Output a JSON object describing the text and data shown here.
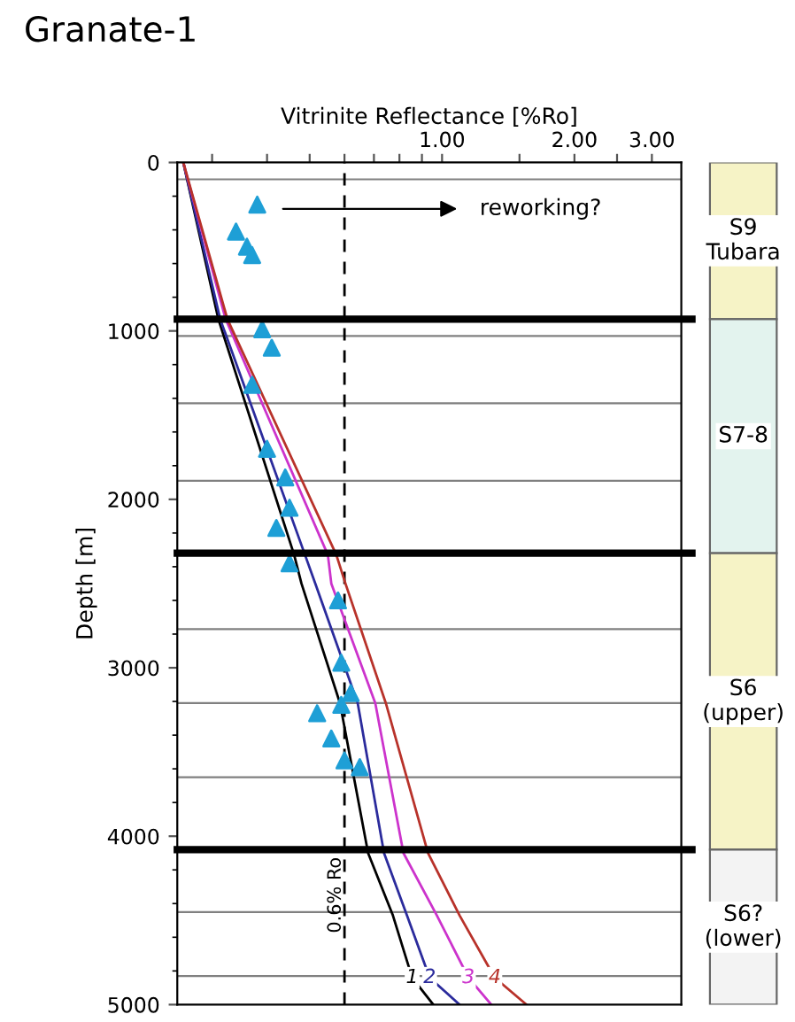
{
  "chart_data": [
    {
      "type": "line",
      "title": "Granate-1",
      "xlabel": "Vitrinite Reflectance [%Ro]",
      "ylabel": "Depth [m]",
      "log": "x",
      "xlim": [
        0.25,
        3.5
      ],
      "xticks": [
        {
          "value": 0.3,
          "label": null
        },
        {
          "value": 0.4,
          "label": null
        },
        {
          "value": 0.5,
          "label": null
        },
        {
          "value": 0.6,
          "label": null
        },
        {
          "value": 0.7,
          "label": null
        },
        {
          "value": 0.8,
          "label": null
        },
        {
          "value": 0.9,
          "label": null
        },
        {
          "value": 1,
          "label": "1.00"
        },
        {
          "value": 1.5,
          "label": null
        },
        {
          "value": 2,
          "label": "2.00"
        },
        {
          "value": 2.5,
          "label": null
        },
        {
          "value": 3,
          "label": "3.00"
        }
      ],
      "ylim": [
        5000,
        0
      ],
      "yticks": [
        0,
        1000,
        2000,
        3000,
        4000,
        5000
      ],
      "grid": false,
      "legend": false,
      "series": [
        {
          "name": "1",
          "color": "#000000",
          "x": [
            0.258,
            0.31,
            0.461,
            0.479,
            0.586,
            0.679,
            0.773,
            0.855,
            0.955
          ],
          "values": [
            0,
            930,
            2330,
            2500,
            3210,
            4100,
            4470,
            4840,
            5000
          ]
        },
        {
          "name": "2",
          "color": "#2b2b9c",
          "x": [
            0.258,
            0.313,
            0.488,
            0.515,
            0.643,
            0.738,
            0.832,
            0.937,
            1.096
          ],
          "values": [
            0,
            930,
            2330,
            2500,
            3210,
            4100,
            4470,
            4840,
            5000
          ]
        },
        {
          "name": "3",
          "color": "#cc33cc",
          "x": [
            0.258,
            0.322,
            0.55,
            0.56,
            0.705,
            0.817,
            0.973,
            1.148,
            1.294
          ],
          "values": [
            0,
            930,
            2330,
            2500,
            3210,
            4100,
            4470,
            4840,
            5000
          ]
        },
        {
          "name": "4",
          "color": "#b8322a",
          "x": [
            0.258,
            0.325,
            0.575,
            0.603,
            0.745,
            0.929,
            1.096,
            1.318,
            1.556
          ],
          "values": [
            0,
            930,
            2330,
            2500,
            3210,
            4100,
            4470,
            4840,
            5000
          ]
        },
        {
          "type": "scatter",
          "marker": "triangle",
          "color": "#1e9fd6",
          "x": [
            0.38,
            0.34,
            0.36,
            0.37,
            0.39,
            0.41,
            0.37,
            0.4,
            0.44,
            0.45,
            0.42,
            0.45,
            0.58,
            0.59,
            0.62,
            0.59,
            0.52,
            0.56,
            0.6,
            0.65
          ],
          "values": [
            250,
            410,
            500,
            550,
            990,
            1100,
            1320,
            1700,
            1870,
            2050,
            2170,
            2380,
            2600,
            2970,
            3150,
            3220,
            3270,
            3420,
            3550,
            3590
          ]
        }
      ],
      "ref_lines": [
        {
          "axis": "x",
          "value": 0.6,
          "label": "0.6% Ro",
          "color": "#000000",
          "line_style": "dashed"
        },
        {
          "axis": "y",
          "value": 930,
          "color": "#000000"
        },
        {
          "axis": "y",
          "value": 2320,
          "color": "#000000"
        },
        {
          "axis": "y",
          "value": 4080,
          "color": "#000000"
        },
        {
          "axis": "y",
          "value": 100,
          "color": "#808080"
        },
        {
          "axis": "y",
          "value": 1030,
          "color": "#808080"
        },
        {
          "axis": "y",
          "value": 1430,
          "color": "#808080"
        },
        {
          "axis": "y",
          "value": 1890,
          "color": "#808080"
        },
        {
          "axis": "y",
          "value": 2770,
          "color": "#808080"
        },
        {
          "axis": "y",
          "value": 3210,
          "color": "#808080"
        },
        {
          "axis": "y",
          "value": 3650,
          "color": "#808080"
        },
        {
          "axis": "y",
          "value": 4450,
          "color": "#808080"
        },
        {
          "axis": "y",
          "value": 4830,
          "color": "#808080"
        }
      ],
      "annotations": [
        "reworking?"
      ]
    },
    {
      "type": "bar",
      "stacked": true,
      "categories": [
        null
      ],
      "ylim": [
        5000,
        0
      ],
      "tick_labels": false,
      "series": [
        {
          "name": "S9\nTubara",
          "color": "#f6f3c6",
          "values": [
            930
          ]
        },
        {
          "name": "S7-8",
          "color": "#e3f3ee",
          "values": [
            1390
          ]
        },
        {
          "name": "S6\n(upper)",
          "color": "#f6f3c6",
          "values": [
            1760
          ]
        },
        {
          "name": "S6?\n(lower)",
          "color": "#f3f3f3",
          "values": [
            920
          ]
        }
      ]
    }
  ]
}
